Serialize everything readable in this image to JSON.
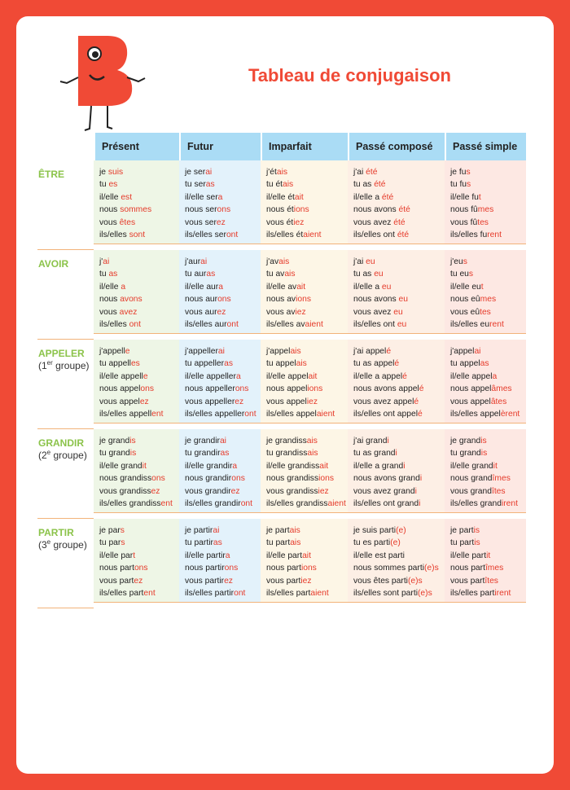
{
  "title": "Tableau de conjugaison",
  "headers": [
    "Présent",
    "Futur",
    "Imparfait",
    "Passé composé",
    "Passé simple"
  ],
  "rows": [
    {
      "verb": "ÊTRE",
      "cells": [
        [
          [
            "je ",
            "suis"
          ],
          [
            "tu ",
            "es"
          ],
          [
            "il/elle ",
            "est"
          ],
          [
            "nous ",
            "sommes"
          ],
          [
            "vous ",
            "êtes"
          ],
          [
            "ils/elles ",
            "sont"
          ]
        ],
        [
          [
            "je ser",
            "ai"
          ],
          [
            "tu ser",
            "as"
          ],
          [
            "il/elle ser",
            "a"
          ],
          [
            "nous ser",
            "ons"
          ],
          [
            "vous ser",
            "ez"
          ],
          [
            "ils/elles ser",
            "ont"
          ]
        ],
        [
          [
            "j'ét",
            "ais"
          ],
          [
            "tu ét",
            "ais"
          ],
          [
            "il/elle ét",
            "ait"
          ],
          [
            "nous ét",
            "ions"
          ],
          [
            "vous ét",
            "iez"
          ],
          [
            "ils/elles ét",
            "aient"
          ]
        ],
        [
          [
            "j'ai ",
            "été"
          ],
          [
            "tu as ",
            "été"
          ],
          [
            "il/elle a ",
            "été"
          ],
          [
            "nous avons ",
            "été"
          ],
          [
            "vous avez ",
            "été"
          ],
          [
            "ils/elles ont ",
            "été"
          ]
        ],
        [
          [
            "je fu",
            "s"
          ],
          [
            "tu fu",
            "s"
          ],
          [
            "il/elle fu",
            "t"
          ],
          [
            "nous fû",
            "mes"
          ],
          [
            "vous fû",
            "tes"
          ],
          [
            "ils/elles fu",
            "rent"
          ]
        ]
      ]
    },
    {
      "verb": "AVOIR",
      "cells": [
        [
          [
            "j'",
            "ai"
          ],
          [
            "tu ",
            "as"
          ],
          [
            "il/elle ",
            "a"
          ],
          [
            "nous ",
            "avons"
          ],
          [
            "vous ",
            "avez"
          ],
          [
            "ils/elles ",
            "ont"
          ]
        ],
        [
          [
            "j'aur",
            "ai"
          ],
          [
            "tu aur",
            "as"
          ],
          [
            "il/elle aur",
            "a"
          ],
          [
            "nous aur",
            "ons"
          ],
          [
            "vous aur",
            "ez"
          ],
          [
            "ils/elles aur",
            "ont"
          ]
        ],
        [
          [
            "j'av",
            "ais"
          ],
          [
            "tu av",
            "ais"
          ],
          [
            "il/elle av",
            "ait"
          ],
          [
            "nous av",
            "ions"
          ],
          [
            "vous av",
            "iez"
          ],
          [
            "ils/elles av",
            "aient"
          ]
        ],
        [
          [
            "j'ai ",
            "eu"
          ],
          [
            "tu as ",
            "eu"
          ],
          [
            "il/elle a ",
            "eu"
          ],
          [
            "nous avons ",
            "eu"
          ],
          [
            "vous avez ",
            "eu"
          ],
          [
            "ils/elles ont ",
            "eu"
          ]
        ],
        [
          [
            "j'eu",
            "s"
          ],
          [
            "tu eu",
            "s"
          ],
          [
            "il/elle eu",
            "t"
          ],
          [
            "nous eû",
            "mes"
          ],
          [
            "vous eû",
            "tes"
          ],
          [
            "ils/elles eu",
            "rent"
          ]
        ]
      ]
    },
    {
      "verb": "APPELER",
      "group": [
        "(1",
        "er",
        " groupe)"
      ],
      "cells": [
        [
          [
            "j'appell",
            "e"
          ],
          [
            "tu appell",
            "es"
          ],
          [
            "il/elle appell",
            "e"
          ],
          [
            "nous appel",
            "ons"
          ],
          [
            "vous appel",
            "ez"
          ],
          [
            "ils/elles appell",
            "ent"
          ]
        ],
        [
          [
            "j'appeller",
            "ai"
          ],
          [
            "tu appeller",
            "as"
          ],
          [
            "il/elle appeller",
            "a"
          ],
          [
            "nous appeller",
            "ons"
          ],
          [
            "vous appeller",
            "ez"
          ],
          [
            "ils/elles appeller",
            "ont"
          ]
        ],
        [
          [
            "j'appel",
            "ais"
          ],
          [
            "tu appel",
            "ais"
          ],
          [
            "il/elle appel",
            "ait"
          ],
          [
            "nous appel",
            "ions"
          ],
          [
            "vous appel",
            "iez"
          ],
          [
            "ils/elles appel",
            "aient"
          ]
        ],
        [
          [
            "j'ai appel",
            "é"
          ],
          [
            "tu as appel",
            "é"
          ],
          [
            "il/elle a appel",
            "é"
          ],
          [
            "nous avons appel",
            "é"
          ],
          [
            "vous avez appel",
            "é"
          ],
          [
            "ils/elles ont appel",
            "é"
          ]
        ],
        [
          [
            "j'appel",
            "ai"
          ],
          [
            "tu appel",
            "as"
          ],
          [
            "il/elle appel",
            "a"
          ],
          [
            "nous appel",
            "âmes"
          ],
          [
            "vous appel",
            "âtes"
          ],
          [
            "ils/elles appel",
            "èrent"
          ]
        ]
      ]
    },
    {
      "verb": "GRANDIR",
      "group": [
        "(2",
        "e",
        " groupe)"
      ],
      "cells": [
        [
          [
            "je grand",
            "is"
          ],
          [
            "tu grand",
            "is"
          ],
          [
            "il/elle grand",
            "it"
          ],
          [
            "nous grandiss",
            "ons"
          ],
          [
            "vous grandiss",
            "ez"
          ],
          [
            "ils/elles grandiss",
            "ent"
          ]
        ],
        [
          [
            "je grandir",
            "ai"
          ],
          [
            "tu grandir",
            "as"
          ],
          [
            "il/elle grandir",
            "a"
          ],
          [
            "nous grandir",
            "ons"
          ],
          [
            "vous grandir",
            "ez"
          ],
          [
            "ils/elles grandir",
            "ont"
          ]
        ],
        [
          [
            "je grandiss",
            "ais"
          ],
          [
            "tu grandiss",
            "ais"
          ],
          [
            "il/elle grandiss",
            "ait"
          ],
          [
            "nous grandiss",
            "ions"
          ],
          [
            "vous grandiss",
            "iez"
          ],
          [
            "ils/elles grandiss",
            "aient"
          ]
        ],
        [
          [
            "j'ai grand",
            "i"
          ],
          [
            "tu as grand",
            "i"
          ],
          [
            "il/elle a grand",
            "i"
          ],
          [
            "nous avons grand",
            "i"
          ],
          [
            "vous avez grand",
            "i"
          ],
          [
            "ils/elles ont grand",
            "i"
          ]
        ],
        [
          [
            "je grand",
            "is"
          ],
          [
            "tu grand",
            "is"
          ],
          [
            "il/elle grand",
            "it"
          ],
          [
            "nous grand",
            "îmes"
          ],
          [
            "vous grand",
            "îtes"
          ],
          [
            "ils/elles grand",
            "irent"
          ]
        ]
      ]
    },
    {
      "verb": "PARTIR",
      "group": [
        "(3",
        "e",
        " groupe)"
      ],
      "cells": [
        [
          [
            "je par",
            "s"
          ],
          [
            "tu par",
            "s"
          ],
          [
            "il/elle par",
            "t"
          ],
          [
            "nous part",
            "ons"
          ],
          [
            "vous part",
            "ez"
          ],
          [
            "ils/elles part",
            "ent"
          ]
        ],
        [
          [
            "je partir",
            "ai"
          ],
          [
            "tu partir",
            "as"
          ],
          [
            "il/elle partir",
            "a"
          ],
          [
            "nous partir",
            "ons"
          ],
          [
            "vous partir",
            "ez"
          ],
          [
            "ils/elles partir",
            "ont"
          ]
        ],
        [
          [
            "je part",
            "ais"
          ],
          [
            "tu part",
            "ais"
          ],
          [
            "il/elle part",
            "ait"
          ],
          [
            "nous part",
            "ions"
          ],
          [
            "vous part",
            "iez"
          ],
          [
            "ils/elles part",
            "aient"
          ]
        ],
        [
          [
            "je suis parti",
            "(e)"
          ],
          [
            "tu es parti",
            "(e)"
          ],
          [
            "il/elle est parti"
          ],
          [
            "nous sommes parti",
            "(e)s"
          ],
          [
            "vous êtes parti",
            "(e)s"
          ],
          [
            "ils/elles sont parti",
            "(e)s"
          ]
        ],
        [
          [
            "je part",
            "is"
          ],
          [
            "tu part",
            "is"
          ],
          [
            "il/elle part",
            "it"
          ],
          [
            "nous part",
            "îmes"
          ],
          [
            "vous part",
            "îtes"
          ],
          [
            "ils/elles part",
            "irent"
          ]
        ]
      ]
    }
  ]
}
